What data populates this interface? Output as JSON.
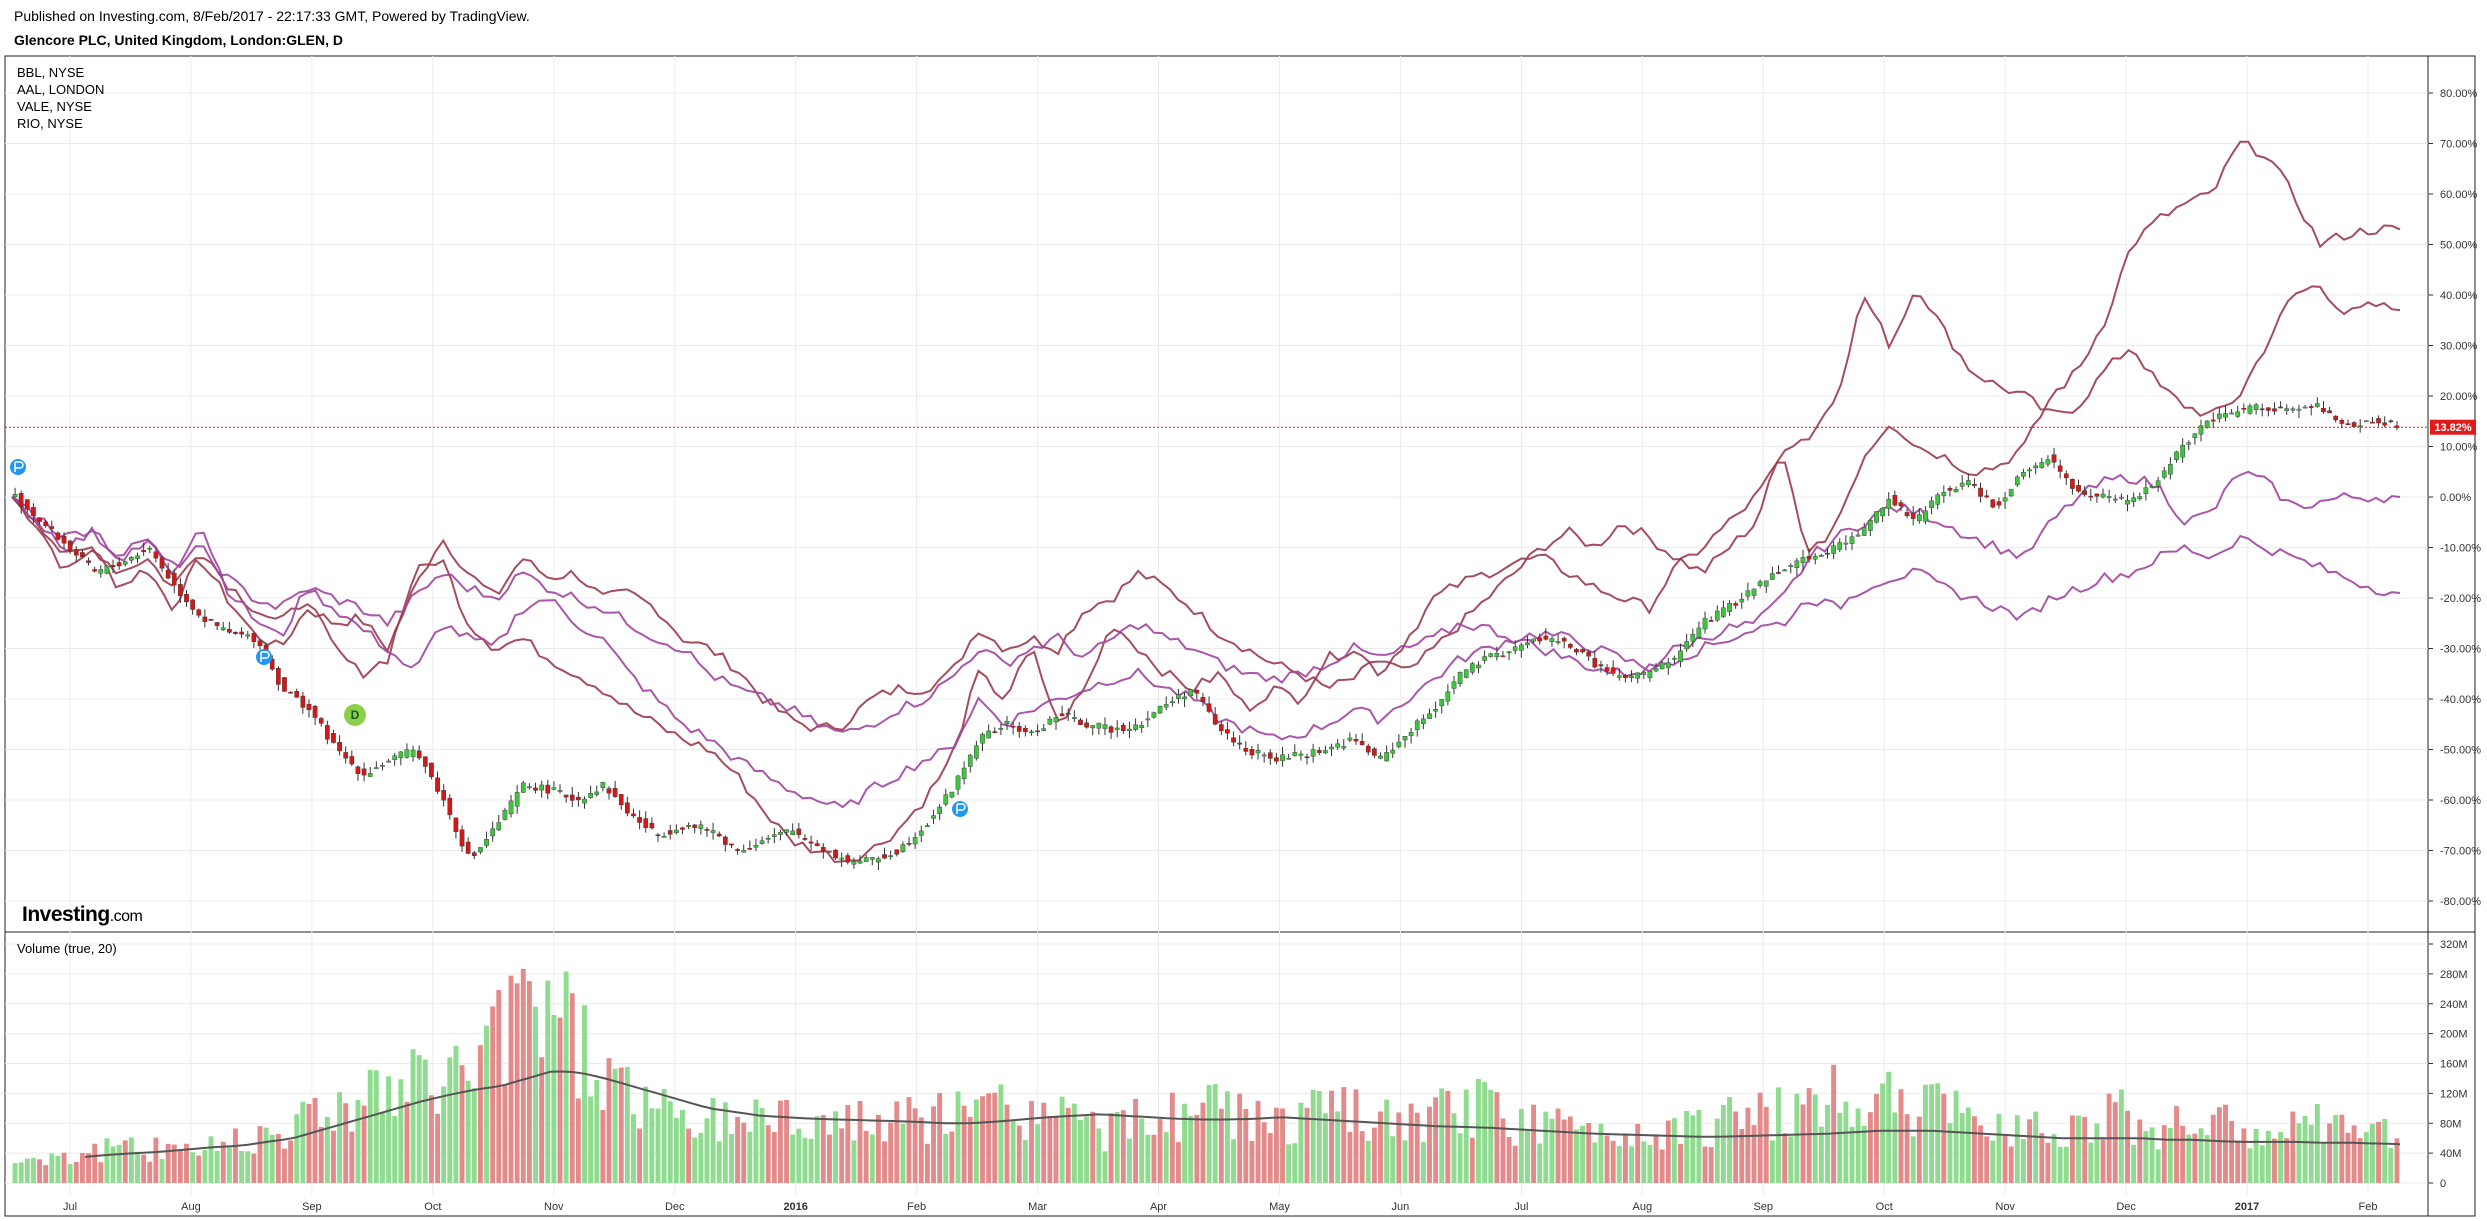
{
  "header": {
    "published": "Published on Investing.com, 8/Feb/2017 - 22:17:33 GMT, Powered by TradingView.",
    "title": "Glencore PLC, United Kingdom, London:GLEN, D"
  },
  "brand": {
    "name": "Investing",
    "suffix": ".com"
  },
  "colors": {
    "up": "#3ec43e",
    "down": "#d01a1a",
    "vol_up": "#8fdb8f",
    "vol_down": "#e38b8b",
    "cmp_dark": "#9b3a4b",
    "cmp_light": "#a045a0",
    "last_price": "#e21a1a",
    "vol_ma": "#555555",
    "marker_blue": "#2196f3",
    "marker_green": "#8bd04c"
  },
  "chart_data": [
    {
      "type": "line",
      "title": "",
      "subtitle": "Glencore PLC, United Kingdom, London:GLEN, D",
      "main_series": "candlestick (percentage scale)",
      "yscale": "percent",
      "ylim": [
        -85,
        85
      ],
      "y_ticks": [
        "80.00%",
        "70.00%",
        "60.00%",
        "50.00%",
        "40.00%",
        "30.00%",
        "20.00%",
        "10.00%",
        "0.00%",
        "-10.00%",
        "-20.00%",
        "-30.00%",
        "-40.00%",
        "-50.00%",
        "-60.00%",
        "-70.00%",
        "-80.00%"
      ],
      "x_ticks": [
        "Jul",
        "Aug",
        "Sep",
        "Oct",
        "Nov",
        "Dec",
        "2016",
        "Feb",
        "Mar",
        "Apr",
        "May",
        "Jun",
        "Jul",
        "Aug",
        "Sep",
        "Oct",
        "Nov",
        "Dec",
        "2017",
        "Feb"
      ],
      "x_ticks_bold": [
        "2016",
        "2017"
      ],
      "last_value_label": "13.82%",
      "last_value": 13.82,
      "grid": true,
      "legend_position": "top-left",
      "legend": [
        "BBL, NYSE",
        "AAL, LONDON",
        "VALE, NYSE",
        "RIO, NYSE"
      ],
      "markers": [
        {
          "label": "D",
          "kind": "dividend"
        }
      ],
      "series": [
        {
          "name": "GLEN",
          "style": "candles",
          "values": [
            0,
            -5,
            -10,
            -15,
            -13,
            -10,
            -18,
            -24,
            -27,
            -28,
            -38,
            -42,
            -50,
            -55,
            -52,
            -50,
            -60,
            -72,
            -65,
            -57,
            -58,
            -60,
            -57,
            -63,
            -67,
            -65,
            -66,
            -70,
            -68,
            -66,
            -69,
            -72,
            -72,
            -70,
            -65,
            -58,
            -48,
            -45,
            -47,
            -43,
            -45,
            -46,
            -45,
            -41,
            -38,
            -46,
            -50,
            -52,
            -51,
            -50,
            -48,
            -52,
            -47,
            -42,
            -35,
            -32,
            -30,
            -28,
            -29,
            -33,
            -36,
            -35,
            -32,
            -25,
            -22,
            -18,
            -14,
            -12,
            -10,
            -7,
            0,
            -5,
            1,
            3,
            -2,
            5,
            8,
            1,
            0,
            -1,
            3,
            10,
            15,
            17,
            18,
            17,
            18,
            14,
            15,
            14
          ]
        },
        {
          "name": "BBL, NYSE",
          "style": "line",
          "values": [
            0,
            -6,
            -15,
            -10,
            -18,
            -14,
            -22,
            -12,
            -20,
            -27,
            -30,
            -22,
            -25,
            -24,
            -30,
            -18,
            -8,
            -15,
            -20,
            -12,
            -16,
            -15,
            -20,
            -19,
            -22,
            -28,
            -30,
            -34,
            -40,
            -44,
            -46,
            -45,
            -40,
            -38,
            -38,
            -35,
            -26,
            -30,
            -28,
            -30,
            -22,
            -20,
            -15,
            -18,
            -22,
            -27,
            -30,
            -33,
            -35,
            -38,
            -36,
            -32,
            -35,
            -30,
            -25,
            -20,
            -15,
            -10,
            -7,
            -10,
            -5,
            -8,
            -12,
            -15,
            -10,
            -5,
            10,
            12,
            20,
            40,
            30,
            42,
            33,
            25,
            22,
            20,
            16,
            18,
            25,
            30,
            22,
            18,
            16,
            20,
            30,
            40,
            42,
            36,
            38,
            37
          ]
        },
        {
          "name": "AAL, LONDON",
          "style": "line",
          "values": [
            0,
            -5,
            -12,
            -10,
            -15,
            -12,
            -18,
            -10,
            -17,
            -22,
            -25,
            -20,
            -30,
            -35,
            -32,
            -15,
            -12,
            -25,
            -30,
            -28,
            -32,
            -35,
            -38,
            -42,
            -45,
            -48,
            -50,
            -55,
            -62,
            -68,
            -70,
            -72,
            -70,
            -66,
            -60,
            -52,
            -35,
            -40,
            -30,
            -45,
            -38,
            -25,
            -30,
            -35,
            -38,
            -35,
            -42,
            -38,
            -40,
            -32,
            -30,
            -35,
            -28,
            -20,
            -17,
            -15,
            -13,
            -12,
            -15,
            -18,
            -20,
            -22,
            -14,
            -10,
            -5,
            0,
            8,
            -12,
            -5,
            8,
            15,
            10,
            8,
            5,
            6,
            10,
            20,
            25,
            35,
            50,
            55,
            58,
            60,
            70,
            68,
            60,
            50,
            52,
            53,
            53
          ]
        },
        {
          "name": "VALE, NYSE",
          "style": "line",
          "values": [
            0,
            -4,
            -8,
            -6,
            -12,
            -8,
            -15,
            -5,
            -18,
            -24,
            -28,
            -18,
            -22,
            -26,
            -30,
            -35,
            -25,
            -28,
            -30,
            -22,
            -20,
            -25,
            -28,
            -35,
            -40,
            -45,
            -48,
            -52,
            -55,
            -58,
            -60,
            -62,
            -58,
            -55,
            -52,
            -50,
            -40,
            -45,
            -42,
            -40,
            -38,
            -36,
            -35,
            -38,
            -40,
            -44,
            -46,
            -48,
            -47,
            -45,
            -42,
            -44,
            -40,
            -36,
            -32,
            -30,
            -28,
            -27,
            -28,
            -30,
            -32,
            -34,
            -30,
            -28,
            -26,
            -25,
            -20,
            -12,
            -8,
            -5,
            -2,
            -3,
            -5,
            -8,
            -10,
            -12,
            -5,
            0,
            3,
            4,
            2,
            -5,
            -3,
            5,
            3,
            -2,
            -1,
            0,
            0,
            0
          ]
        },
        {
          "name": "RIO, NYSE",
          "style": "line",
          "values": [
            0,
            -5,
            -10,
            -7,
            -12,
            -9,
            -14,
            -10,
            -16,
            -20,
            -22,
            -18,
            -20,
            -22,
            -25,
            -20,
            -15,
            -18,
            -20,
            -15,
            -18,
            -20,
            -22,
            -25,
            -28,
            -30,
            -35,
            -38,
            -40,
            -42,
            -45,
            -47,
            -45,
            -42,
            -40,
            -36,
            -30,
            -33,
            -30,
            -28,
            -32,
            -28,
            -25,
            -28,
            -30,
            -33,
            -35,
            -36,
            -35,
            -33,
            -30,
            -32,
            -30,
            -28,
            -25,
            -26,
            -28,
            -30,
            -32,
            -34,
            -35,
            -34,
            -32,
            -30,
            -28,
            -26,
            -25,
            -20,
            -22,
            -18,
            -16,
            -15,
            -18,
            -20,
            -22,
            -24,
            -20,
            -18,
            -16,
            -15,
            -12,
            -10,
            -12,
            -8,
            -10,
            -12,
            -14,
            -16,
            -18,
            -19
          ]
        }
      ]
    },
    {
      "type": "bar",
      "title": "Volume (true, 20)",
      "ylim": [
        0,
        320
      ],
      "y_unit": "M",
      "y_ticks": [
        "320M",
        "280M",
        "240M",
        "200M",
        "160M",
        "120M",
        "80M",
        "40M",
        "0"
      ],
      "series": [
        {
          "name": "",
          "style": "bars",
          "values": [
            30,
            40,
            38,
            45,
            50,
            42,
            55,
            48,
            60,
            70,
            80,
            95,
            110,
            130,
            120,
            140,
            150,
            160,
            200,
            250,
            290,
            200,
            160,
            130,
            100,
            90,
            85,
            95,
            100,
            90,
            95,
            85,
            80,
            90,
            85,
            95,
            100,
            110,
            95,
            105,
            80,
            75,
            85,
            90,
            110,
            100,
            95,
            85,
            90,
            95,
            100,
            85,
            80,
            95,
            100,
            105,
            90,
            85,
            75,
            80,
            70,
            75,
            85,
            80,
            90,
            95,
            100,
            110,
            120,
            125,
            115,
            110,
            100,
            95,
            90,
            85,
            80,
            85,
            90,
            95,
            80,
            85,
            75,
            80,
            70,
            75,
            80,
            70,
            75,
            65
          ]
        },
        {
          "name": "",
          "style": "line",
          "values": [
            35,
            38,
            40,
            42,
            45,
            48,
            50,
            55,
            60,
            70,
            80,
            90,
            100,
            110,
            118,
            125,
            130,
            140,
            150,
            148,
            140,
            130,
            120,
            110,
            100,
            95,
            90,
            88,
            86,
            85,
            84,
            83,
            82,
            80,
            80,
            82,
            85,
            88,
            90,
            92,
            90,
            88,
            86,
            85,
            85,
            86,
            88,
            86,
            84,
            82,
            80,
            78,
            76,
            75,
            74,
            72,
            70,
            68,
            66,
            65,
            64,
            63,
            62,
            62,
            63,
            64,
            65,
            66,
            68,
            70,
            70,
            70,
            68,
            66,
            64,
            62,
            60,
            60,
            60,
            60,
            58,
            58,
            56,
            55,
            55,
            55,
            54,
            54,
            53,
            52
          ]
        }
      ]
    }
  ]
}
